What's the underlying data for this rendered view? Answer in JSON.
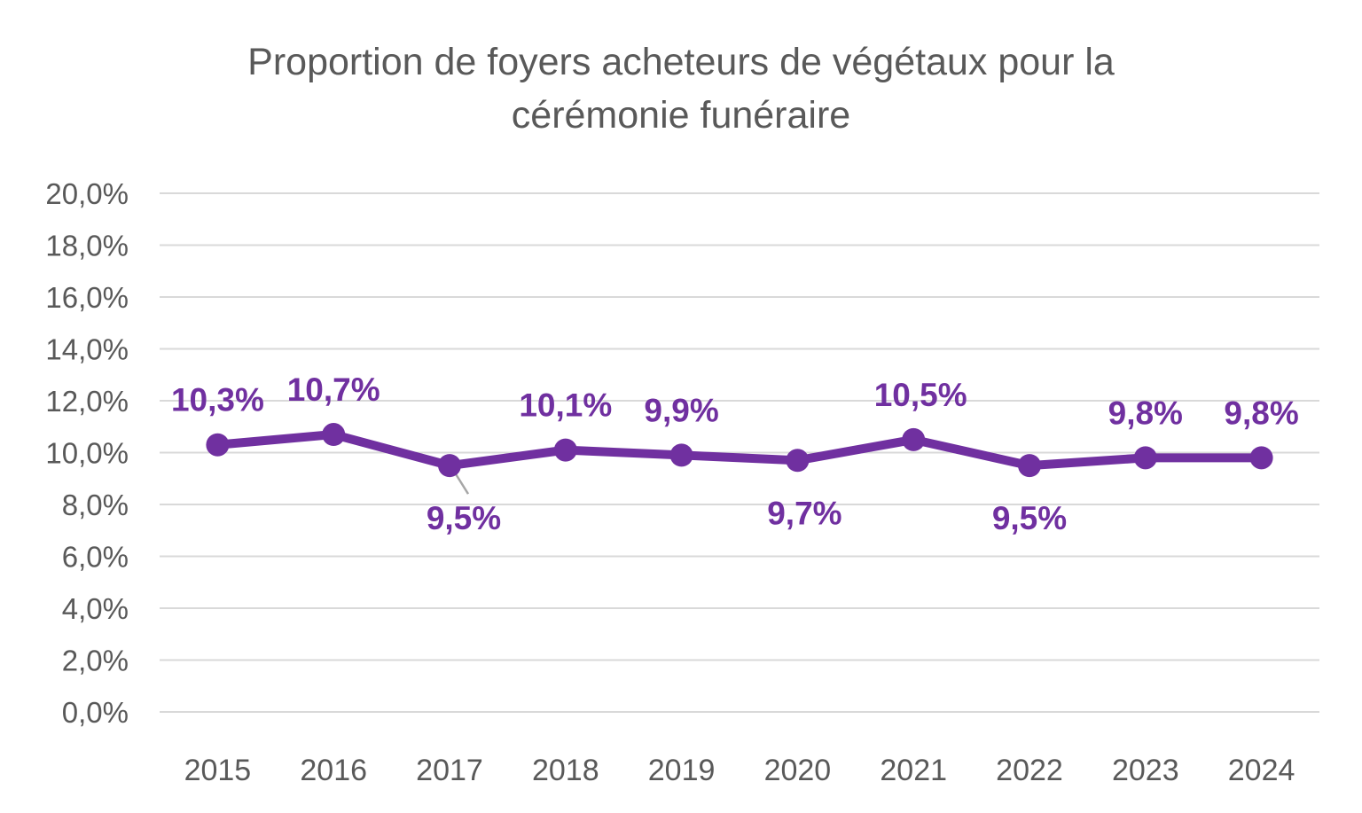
{
  "title": {
    "lines": [
      "Proportion de foyers acheteurs de végétaux pour la",
      "cérémonie funéraire"
    ]
  },
  "chart_data": {
    "type": "line",
    "title": "Proportion de foyers acheteurs de végétaux pour la cérémonie funéraire",
    "categories": [
      "2015",
      "2016",
      "2017",
      "2018",
      "2019",
      "2020",
      "2021",
      "2022",
      "2023",
      "2024"
    ],
    "values": [
      10.3,
      10.7,
      9.5,
      10.1,
      9.9,
      9.7,
      10.5,
      9.5,
      9.8,
      9.8
    ],
    "point_labels": [
      "10,3%",
      "10,7%",
      "9,5%",
      "10,1%",
      "9,9%",
      "9,7%",
      "10,5%",
      "9,5%",
      "9,8%",
      "9,8%"
    ],
    "label_positions": [
      "above",
      "above",
      "below",
      "above",
      "above",
      "below",
      "above",
      "below",
      "above",
      "above"
    ],
    "label_offsets_x": [
      0,
      0,
      16,
      0,
      0,
      8,
      8,
      0,
      0,
      0
    ],
    "leader_line_index": 2,
    "y_ticks": [
      "0,0%",
      "2,0%",
      "4,0%",
      "6,0%",
      "8,0%",
      "10,0%",
      "12,0%",
      "14,0%",
      "16,0%",
      "18,0%",
      "20,0%"
    ],
    "ylim": [
      0,
      20
    ],
    "xlabel": "",
    "ylabel": "",
    "grid": true,
    "legend": "none",
    "colors": {
      "line": "#7030A0",
      "marker": "#7030A0",
      "data_label": "#7030A0",
      "grid": "#D9D9D9",
      "axis_text": "#595959",
      "title_text": "#595959",
      "leader": "#A6A6A6",
      "background": "#FFFFFF"
    }
  }
}
